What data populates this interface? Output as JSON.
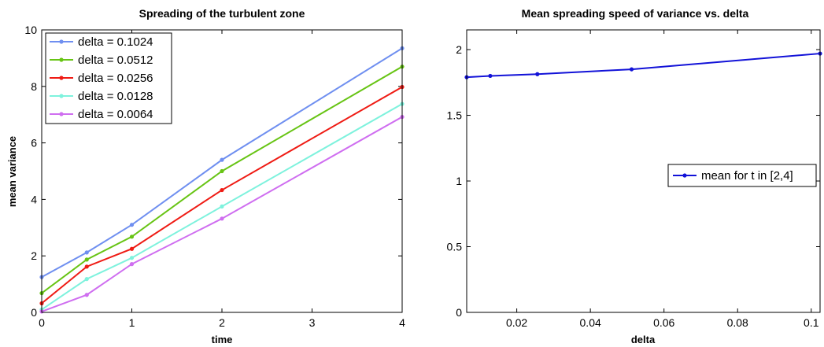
{
  "chart_data": [
    {
      "type": "line",
      "title": "Spreading of the turbulent zone",
      "xlabel": "time",
      "ylabel": "mean variance",
      "xlim": [
        0,
        4
      ],
      "ylim": [
        0,
        10
      ],
      "xticks": [
        0,
        1,
        2,
        3,
        4
      ],
      "yticks": [
        0,
        2,
        4,
        6,
        8,
        10
      ],
      "x": [
        0,
        0.5,
        1,
        2,
        4
      ],
      "grid": false,
      "legend_position": "top-left",
      "series": [
        {
          "name": "delta = 0.1024",
          "color": "#6f8ff0",
          "values": [
            1.25,
            2.12,
            3.1,
            5.4,
            9.35
          ]
        },
        {
          "name": "delta = 0.0512",
          "color": "#67c414",
          "values": [
            0.68,
            1.87,
            2.68,
            5.0,
            8.7
          ]
        },
        {
          "name": "delta = 0.0256",
          "color": "#ef1b14",
          "values": [
            0.32,
            1.62,
            2.25,
            4.33,
            7.98
          ]
        },
        {
          "name": "delta = 0.0128",
          "color": "#7ef2dd",
          "values": [
            0.1,
            1.18,
            1.93,
            3.75,
            7.38
          ]
        },
        {
          "name": "delta = 0.0064",
          "color": "#cf6ef0",
          "values": [
            0.03,
            0.62,
            1.71,
            3.32,
            6.92
          ]
        }
      ]
    },
    {
      "type": "line",
      "title": "Mean spreading speed of variance vs. delta",
      "xlabel": "delta",
      "ylabel": "",
      "xlim": [
        0.0064,
        0.1024
      ],
      "ylim": [
        0,
        2.15
      ],
      "xticks": [
        0.02,
        0.04,
        0.06,
        0.08,
        0.1
      ],
      "yticks": [
        0,
        0.5,
        1,
        1.5,
        2
      ],
      "x": [
        0.0064,
        0.0128,
        0.0256,
        0.0512,
        0.1024
      ],
      "grid": false,
      "legend_position": "center-right",
      "series": [
        {
          "name": "mean for t in [2,4]",
          "color": "#1212d8",
          "values": [
            1.79,
            1.8,
            1.813,
            1.85,
            1.97
          ]
        }
      ]
    }
  ]
}
